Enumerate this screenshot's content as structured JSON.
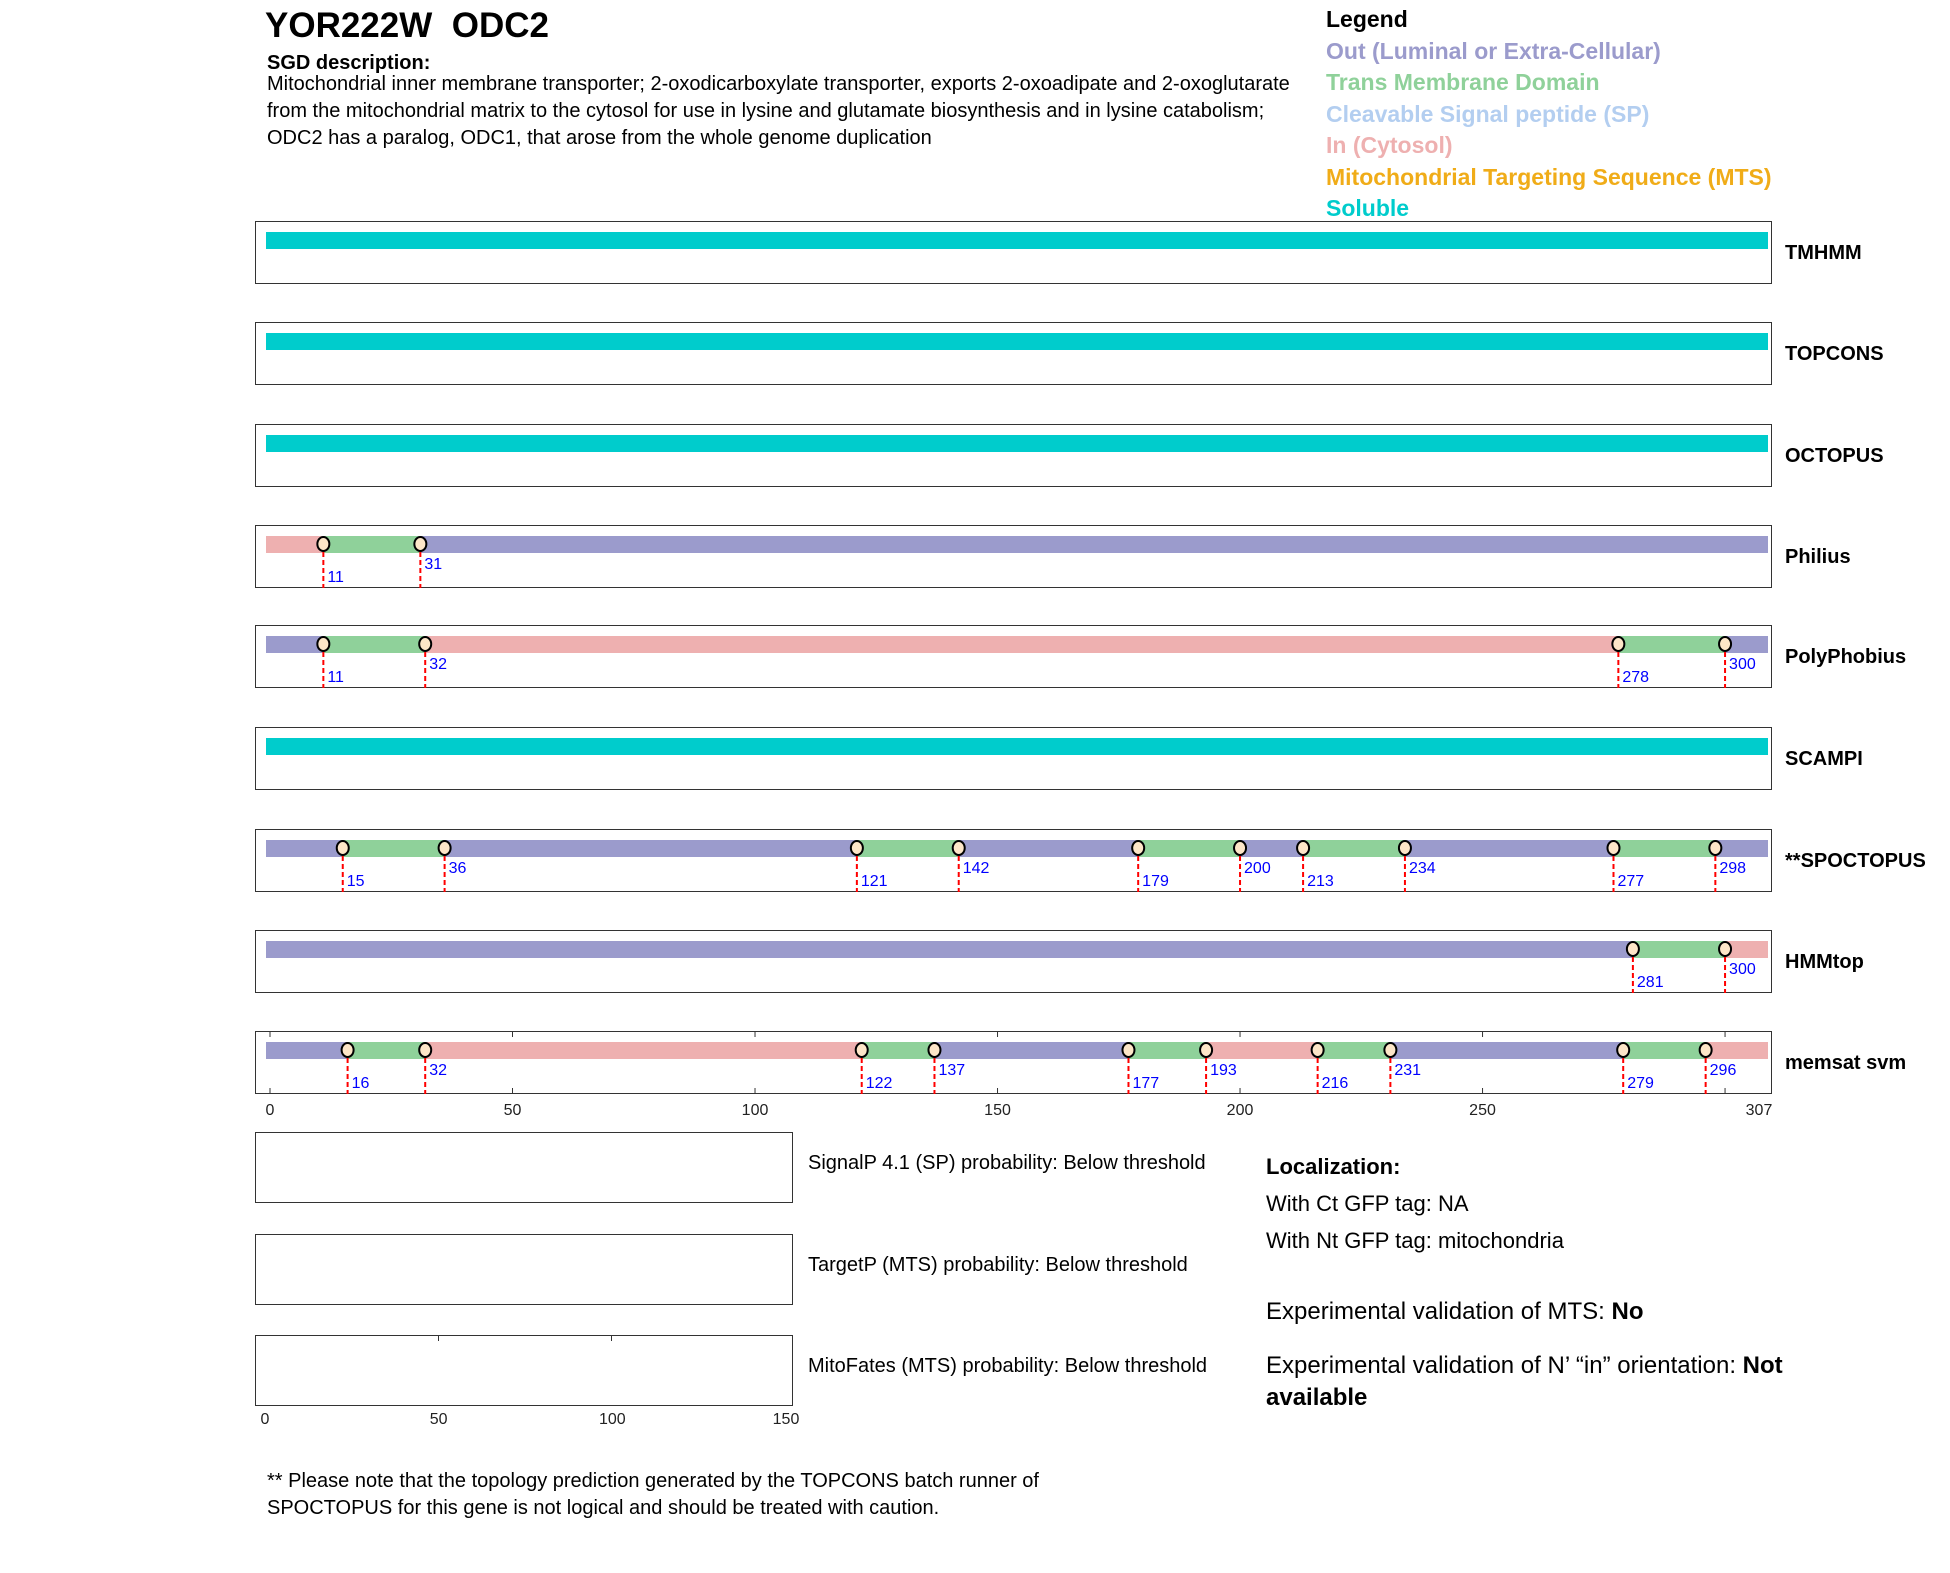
{
  "title": "YOR222W  ODC2",
  "sgd": {
    "heading": "SGD description:",
    "text": "Mitochondrial inner membrane transporter; 2-oxodicarboxylate transporter, exports 2-oxoadipate and 2-oxoglutarate from the mitochondrial matrix to the cytosol for use in lysine and glutamate biosynthesis and in lysine catabolism; ODC2 has a paralog, ODC1, that arose from the whole genome duplication"
  },
  "legend": {
    "title": "Legend",
    "items": [
      {
        "label": "Out (Luminal or Extra-Cellular)",
        "color": "#9b9bcc",
        "key": "out"
      },
      {
        "label": "Trans Membrane Domain",
        "color": "#8fd19a",
        "key": "tm"
      },
      {
        "label": "Cleavable Signal peptide (SP)",
        "color": "#b3cef0",
        "key": "sp"
      },
      {
        "label": "In (Cytosol)",
        "color": "#eeb0b0",
        "key": "in"
      },
      {
        "label": "Mitochondrial Targeting Sequence (MTS)",
        "color": "#f0ac18",
        "key": "mts"
      },
      {
        "label": "Soluble",
        "color": "#00cccc",
        "key": "sol"
      }
    ]
  },
  "length": 307,
  "tracks": [
    {
      "name": "TMHMM",
      "segments": [
        [
          1,
          307,
          "sol"
        ]
      ]
    },
    {
      "name": "TOPCONS",
      "segments": [
        [
          1,
          307,
          "sol"
        ]
      ]
    },
    {
      "name": "OCTOPUS",
      "segments": [
        [
          1,
          307,
          "sol"
        ]
      ]
    },
    {
      "name": "Philius",
      "segments": [
        [
          1,
          11,
          "in"
        ],
        [
          11,
          31,
          "tm"
        ],
        [
          31,
          307,
          "out"
        ]
      ]
    },
    {
      "name": "PolyPhobius",
      "segments": [
        [
          1,
          11,
          "out"
        ],
        [
          11,
          32,
          "tm"
        ],
        [
          32,
          278,
          "in"
        ],
        [
          278,
          300,
          "tm"
        ],
        [
          300,
          307,
          "out"
        ]
      ]
    },
    {
      "name": "SCAMPI",
      "segments": [
        [
          1,
          307,
          "sol"
        ]
      ]
    },
    {
      "name": "**SPOCTOPUS",
      "segments": [
        [
          1,
          15,
          "out"
        ],
        [
          15,
          36,
          "tm"
        ],
        [
          36,
          121,
          "out"
        ],
        [
          121,
          142,
          "tm"
        ],
        [
          142,
          179,
          "out"
        ],
        [
          179,
          200,
          "tm"
        ],
        [
          200,
          213,
          "out"
        ],
        [
          213,
          234,
          "tm"
        ],
        [
          234,
          277,
          "out"
        ],
        [
          277,
          298,
          "tm"
        ],
        [
          298,
          307,
          "out"
        ]
      ]
    },
    {
      "name": "HMMtop",
      "segments": [
        [
          1,
          281,
          "out"
        ],
        [
          281,
          300,
          "tm"
        ],
        [
          300,
          307,
          "in"
        ]
      ]
    },
    {
      "name": "memsat svm",
      "segments": [
        [
          1,
          16,
          "out"
        ],
        [
          16,
          32,
          "tm"
        ],
        [
          32,
          122,
          "in"
        ],
        [
          122,
          137,
          "tm"
        ],
        [
          137,
          177,
          "out"
        ],
        [
          177,
          193,
          "tm"
        ],
        [
          193,
          216,
          "in"
        ],
        [
          216,
          231,
          "tm"
        ],
        [
          231,
          279,
          "out"
        ],
        [
          279,
          296,
          "tm"
        ],
        [
          296,
          307,
          "in"
        ]
      ]
    }
  ],
  "axis_ticks": [
    "0",
    "50",
    "100",
    "150",
    "200",
    "250",
    "307"
  ],
  "small_panels": [
    {
      "label": "SignalP 4.1 (SP) probability: Below threshold"
    },
    {
      "label": "TargetP (MTS) probability: Below threshold"
    },
    {
      "label": "MitoFates (MTS) probability: Below threshold"
    }
  ],
  "small_axis_ticks": [
    "0",
    "50",
    "100",
    "150"
  ],
  "localization": {
    "heading": "Localization:",
    "ct": "With Ct GFP tag: NA",
    "nt": "With Nt GFP tag: mitochondria",
    "mts_label": "Experimental validation of MTS: ",
    "mts_value": "No",
    "orient_label": "Experimental validation of N’ “in” orientation: ",
    "orient_value": "Not available"
  },
  "note": "** Please note that the topology prediction generated by the TOPCONS batch runner of SPOCTOPUS for this gene is not logical and should be treated with caution."
}
